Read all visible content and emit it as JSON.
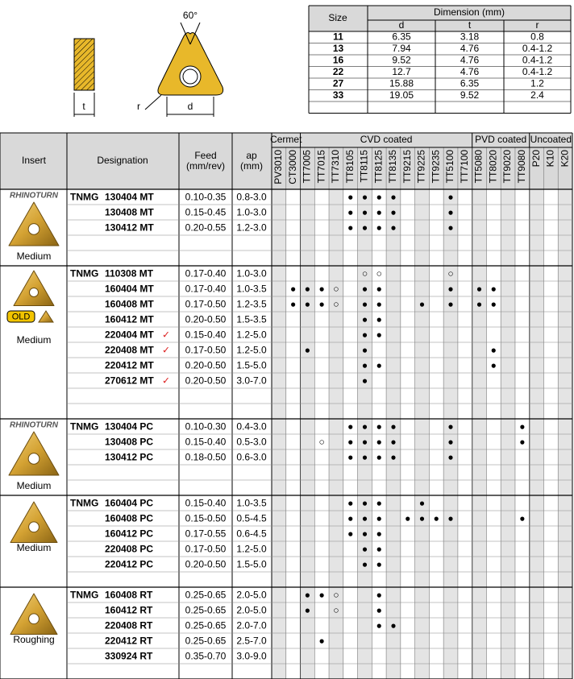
{
  "drawing": {
    "angle": "60°",
    "t": "t",
    "d": "d",
    "r": "r"
  },
  "dimension_table": {
    "header": {
      "size": "Size",
      "dimension": "Dimension (mm)",
      "columns": [
        "d",
        "t",
        "r"
      ]
    },
    "rows": [
      [
        "11",
        "6.35",
        "3.18",
        "0.8"
      ],
      [
        "13",
        "7.94",
        "4.76",
        "0.4-1.2"
      ],
      [
        "16",
        "9.52",
        "4.76",
        "0.4-1.2"
      ],
      [
        "22",
        "12.7",
        "4.76",
        "0.4-1.2"
      ],
      [
        "27",
        "15.88",
        "6.35",
        "1.2"
      ],
      [
        "33",
        "19.05",
        "9.52",
        "2.4"
      ]
    ]
  },
  "table": {
    "header": {
      "insert": "Insert",
      "designation": "Designation",
      "feed": [
        "Feed",
        "(mm/rev)"
      ],
      "ap": [
        "ap",
        "(mm)"
      ]
    },
    "grade_groups": [
      {
        "name": "Cermet",
        "grades": [
          "PV3010",
          "CT3000"
        ]
      },
      {
        "name": "CVD coated",
        "grades": [
          "TT7005",
          "TT7015",
          "TT7310",
          "TT8105",
          "TT8115",
          "TT8125",
          "TT8135",
          "TT9215",
          "TT9225",
          "TT9235",
          "TT5100",
          "TT7100"
        ]
      },
      {
        "name": "PVD coated",
        "grades": [
          "TT5080",
          "TT8020",
          "TT9020",
          "TT9080"
        ]
      },
      {
        "name": "Uncoated",
        "grades": [
          "P20",
          "K10",
          "K20"
        ]
      }
    ],
    "groups": [
      {
        "brand": "RHINOTURN",
        "label": "Medium",
        "prefix": "TNMG",
        "rows": [
          {
            "designation": "130404 MT",
            "feed": "0.10-0.35",
            "ap": "0.8-3.0",
            "marks": {
              "TT8105": "●",
              "TT8115": "●",
              "TT8125": "●",
              "TT8135": "●",
              "TT5100": "●"
            }
          },
          {
            "designation": "130408 MT",
            "feed": "0.15-0.45",
            "ap": "1.0-3.0",
            "marks": {
              "TT8105": "●",
              "TT8115": "●",
              "TT8125": "●",
              "TT8135": "●",
              "TT5100": "●"
            }
          },
          {
            "designation": "130412 MT",
            "feed": "0.20-0.55",
            "ap": "1.2-3.0",
            "marks": {
              "TT8105": "●",
              "TT8115": "●",
              "TT8125": "●",
              "TT8135": "●",
              "TT5100": "●"
            }
          }
        ]
      },
      {
        "old": "OLD",
        "label": "Medium",
        "prefix": "TNMG",
        "rows": [
          {
            "designation": "110308 MT",
            "feed": "0.17-0.40",
            "ap": "1.0-3.0",
            "marks": {
              "TT8115": "○",
              "TT8125": "○",
              "TT5100": "○"
            }
          },
          {
            "designation": "160404 MT",
            "feed": "0.17-0.40",
            "ap": "1.0-3.5",
            "marks": {
              "CT3000": "●",
              "TT7005": "●",
              "TT7015": "●",
              "TT7310": "○",
              "TT8115": "●",
              "TT8125": "●",
              "TT5100": "●",
              "TT5080": "●",
              "TT8020": "●"
            }
          },
          {
            "designation": "160408 MT",
            "feed": "0.17-0.50",
            "ap": "1.2-3.5",
            "marks": {
              "CT3000": "●",
              "TT7005": "●",
              "TT7015": "●",
              "TT7310": "○",
              "TT8115": "●",
              "TT8125": "●",
              "TT9225": "●",
              "TT5100": "●",
              "TT5080": "●",
              "TT8020": "●"
            }
          },
          {
            "designation": "160412 MT",
            "feed": "0.20-0.50",
            "ap": "1.5-3.5",
            "marks": {
              "TT8115": "●",
              "TT8125": "●"
            }
          },
          {
            "designation": "220404 MT",
            "flag": "✓",
            "feed": "0.15-0.40",
            "ap": "1.2-5.0",
            "marks": {
              "TT8115": "●",
              "TT8125": "●"
            }
          },
          {
            "designation": "220408 MT",
            "flag": "✓",
            "feed": "0.17-0.50",
            "ap": "1.2-5.0",
            "marks": {
              "TT7005": "●",
              "TT8115": "●",
              "TT8020": "●"
            }
          },
          {
            "designation": "220412 MT",
            "feed": "0.20-0.50",
            "ap": "1.5-5.0",
            "marks": {
              "TT8115": "●",
              "TT8125": "●",
              "TT8020": "●"
            }
          },
          {
            "designation": "270612 MT",
            "flag": "✓",
            "feed": "0.20-0.50",
            "ap": "3.0-7.0",
            "marks": {
              "TT8115": "●"
            }
          }
        ]
      },
      {
        "brand": "RHINOTURN",
        "label": "Medium",
        "prefix": "TNMG",
        "rows": [
          {
            "designation": "130404 PC",
            "feed": "0.10-0.30",
            "ap": "0.4-3.0",
            "marks": {
              "TT8105": "●",
              "TT8115": "●",
              "TT8125": "●",
              "TT8135": "●",
              "TT5100": "●",
              "TT9080": "●"
            }
          },
          {
            "designation": "130408 PC",
            "feed": "0.15-0.40",
            "ap": "0.5-3.0",
            "marks": {
              "TT7015": "○",
              "TT8105": "●",
              "TT8115": "●",
              "TT8125": "●",
              "TT8135": "●",
              "TT5100": "●",
              "TT9080": "●"
            }
          },
          {
            "designation": "130412 PC",
            "feed": "0.18-0.50",
            "ap": "0.6-3.0",
            "marks": {
              "TT8105": "●",
              "TT8115": "●",
              "TT8125": "●",
              "TT8135": "●",
              "TT5100": "●"
            }
          }
        ]
      },
      {
        "label": "Medium",
        "prefix": "TNMG",
        "rows": [
          {
            "designation": "160404 PC",
            "feed": "0.15-0.40",
            "ap": "1.0-3.5",
            "marks": {
              "TT8105": "●",
              "TT8115": "●",
              "TT8125": "●",
              "TT9225": "●"
            }
          },
          {
            "designation": "160408 PC",
            "feed": "0.15-0.50",
            "ap": "0.5-4.5",
            "marks": {
              "TT8105": "●",
              "TT8115": "●",
              "TT8125": "●",
              "TT9215": "●",
              "TT9225": "●",
              "TT9235": "●",
              "TT5100": "●",
              "TT9080": "●"
            }
          },
          {
            "designation": "160412 PC",
            "feed": "0.17-0.55",
            "ap": "0.6-4.5",
            "marks": {
              "TT8105": "●",
              "TT8115": "●",
              "TT8125": "●"
            }
          },
          {
            "designation": "220408 PC",
            "feed": "0.17-0.50",
            "ap": "1.2-5.0",
            "marks": {
              "TT8115": "●",
              "TT8125": "●"
            }
          },
          {
            "designation": "220412 PC",
            "feed": "0.20-0.50",
            "ap": "1.5-5.0",
            "marks": {
              "TT8115": "●",
              "TT8125": "●"
            }
          }
        ]
      },
      {
        "label": "Roughing",
        "prefix": "TNMG",
        "rows": [
          {
            "designation": "160408 RT",
            "feed": "0.25-0.65",
            "ap": "2.0-5.0",
            "marks": {
              "TT7005": "●",
              "TT7015": "●",
              "TT7310": "○",
              "TT8125": "●"
            }
          },
          {
            "designation": "160412 RT",
            "feed": "0.25-0.65",
            "ap": "2.0-5.0",
            "marks": {
              "TT7005": "●",
              "TT7310": "○",
              "TT8125": "●"
            }
          },
          {
            "designation": "220408 RT",
            "feed": "0.25-0.65",
            "ap": "2.0-7.0",
            "marks": {
              "TT8125": "●",
              "TT8135": "●"
            }
          },
          {
            "designation": "220412 RT",
            "feed": "0.25-0.65",
            "ap": "2.5-7.0",
            "marks": {
              "TT7015": "●"
            }
          },
          {
            "designation": "330924 RT",
            "feed": "0.35-0.70",
            "ap": "3.0-9.0",
            "marks": {}
          }
        ]
      }
    ]
  }
}
